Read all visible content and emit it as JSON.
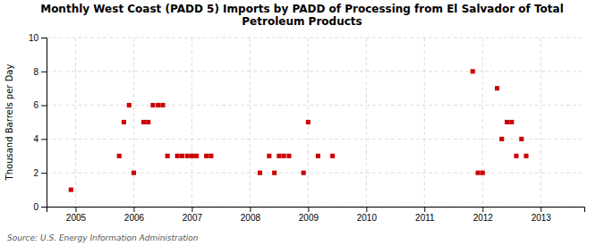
{
  "chart_data": {
    "type": "scatter",
    "title": "Monthly West Coast (PADD 5) Imports by PADD of Processing from El Salvador of Total\nPetroleum Products",
    "ylabel": "Thousand Barrels per Day",
    "annotations": [
      "Source: U.S. Energy Information Administration"
    ],
    "x": [
      2004.92,
      2005.75,
      2005.83,
      2005.92,
      2006.0,
      2006.17,
      2006.25,
      2006.33,
      2006.42,
      2006.5,
      2006.58,
      2006.75,
      2006.83,
      2006.92,
      2007.0,
      2007.08,
      2007.25,
      2007.33,
      2008.17,
      2008.33,
      2008.42,
      2008.5,
      2008.58,
      2008.67,
      2008.92,
      2009.0,
      2009.17,
      2009.42,
      2011.83,
      2011.92,
      2012.0,
      2012.25,
      2012.33,
      2012.42,
      2012.5,
      2012.58,
      2012.67,
      2012.75
    ],
    "values": [
      1,
      3,
      5,
      6,
      2,
      5,
      5,
      6,
      6,
      6,
      3,
      3,
      3,
      3,
      3,
      3,
      3,
      3,
      2,
      3,
      2,
      3,
      3,
      3,
      2,
      5,
      3,
      3,
      8,
      2,
      2,
      7,
      4,
      5,
      5,
      3,
      4,
      3
    ],
    "color": "#cc0000",
    "marker": "square",
    "xlim": [
      2004.5,
      2013.75
    ],
    "xticks": [
      2005,
      2006,
      2007,
      2008,
      2009,
      2010,
      2011,
      2012,
      2013
    ],
    "ylim": [
      0,
      10
    ],
    "yticks": [
      0,
      2,
      4,
      6,
      8,
      10
    ],
    "grid": true
  }
}
